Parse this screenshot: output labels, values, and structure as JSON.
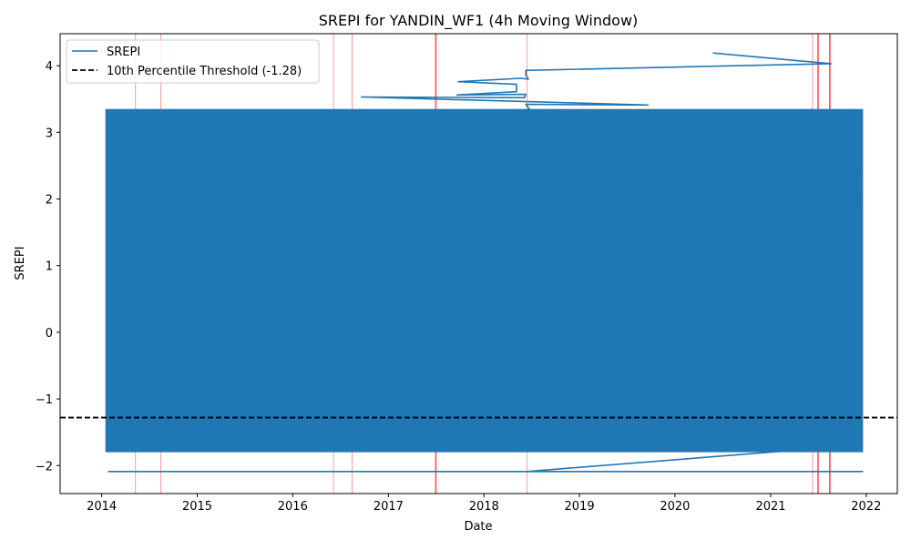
{
  "chart_data": {
    "type": "line",
    "title": "SREPI for YANDIN_WF1 (4h Moving Window)",
    "xlabel": "Date",
    "ylabel": "SREPI",
    "x_ticks": [
      "2014",
      "2015",
      "2016",
      "2017",
      "2018",
      "2019",
      "2020",
      "2021",
      "2022"
    ],
    "y_ticks": [
      4,
      3,
      2,
      1,
      0,
      -1,
      -2
    ],
    "y_tick_labels": [
      "4",
      "3",
      "2",
      "1",
      "0",
      "−1",
      "−2"
    ],
    "xlim": [
      "2013-07-26",
      "2022-04-30"
    ],
    "ylim": [
      -2.42,
      4.48
    ],
    "grid": false,
    "legend_position": "upper-left",
    "colors": {
      "series": "#1f77b4",
      "threshold": "#000000",
      "drought_lines": "#ff0000"
    },
    "series": [
      {
        "name": "SREPI",
        "dense_band": {
          "x_start": "2014-01-15",
          "x_end": "2021-12-20",
          "y_min": -1.8,
          "y_max": 3.35,
          "note_y_min_edge": -2.09
        },
        "line_points": [
          {
            "x": "2014-01-25",
            "y": -2.09
          },
          {
            "x": "2021-12-18",
            "y": -2.09
          },
          {
            "x": "2018-06-15",
            "y": -2.09
          },
          {
            "x": "2021-03-01",
            "y": -1.78
          },
          {
            "x": "2018-06-10",
            "y": 3.42
          },
          {
            "x": "2019-09-20",
            "y": 3.41
          },
          {
            "x": "2016-09-20",
            "y": 3.53
          },
          {
            "x": "2018-06-05",
            "y": 3.52
          },
          {
            "x": "2018-06-10",
            "y": 3.57
          },
          {
            "x": "2017-09-20",
            "y": 3.56
          },
          {
            "x": "2018-05-05",
            "y": 3.61
          },
          {
            "x": "2018-05-05",
            "y": 3.72
          },
          {
            "x": "2017-09-25",
            "y": 3.76
          },
          {
            "x": "2018-05-20",
            "y": 3.81
          },
          {
            "x": "2018-06-20",
            "y": 3.8
          },
          {
            "x": "2018-06-10",
            "y": 3.86
          },
          {
            "x": "2018-06-10",
            "y": 3.93
          },
          {
            "x": "2021-08-20",
            "y": 4.03
          },
          {
            "x": "2020-05-25",
            "y": 4.19
          }
        ]
      },
      {
        "name": "10th Percentile Threshold (-1.28)",
        "y": -1.28
      }
    ],
    "vertical_markers": [
      {
        "x": "2014-05-10",
        "strong": false
      },
      {
        "x": "2014-08-15",
        "strong": false
      },
      {
        "x": "2016-06-05",
        "strong": false
      },
      {
        "x": "2016-08-15",
        "strong": false
      },
      {
        "x": "2017-07-01",
        "strong": true
      },
      {
        "x": "2018-06-15",
        "strong": false
      },
      {
        "x": "2021-06-10",
        "strong": false
      },
      {
        "x": "2021-07-01",
        "strong": true
      },
      {
        "x": "2021-08-15",
        "strong": true
      }
    ]
  }
}
